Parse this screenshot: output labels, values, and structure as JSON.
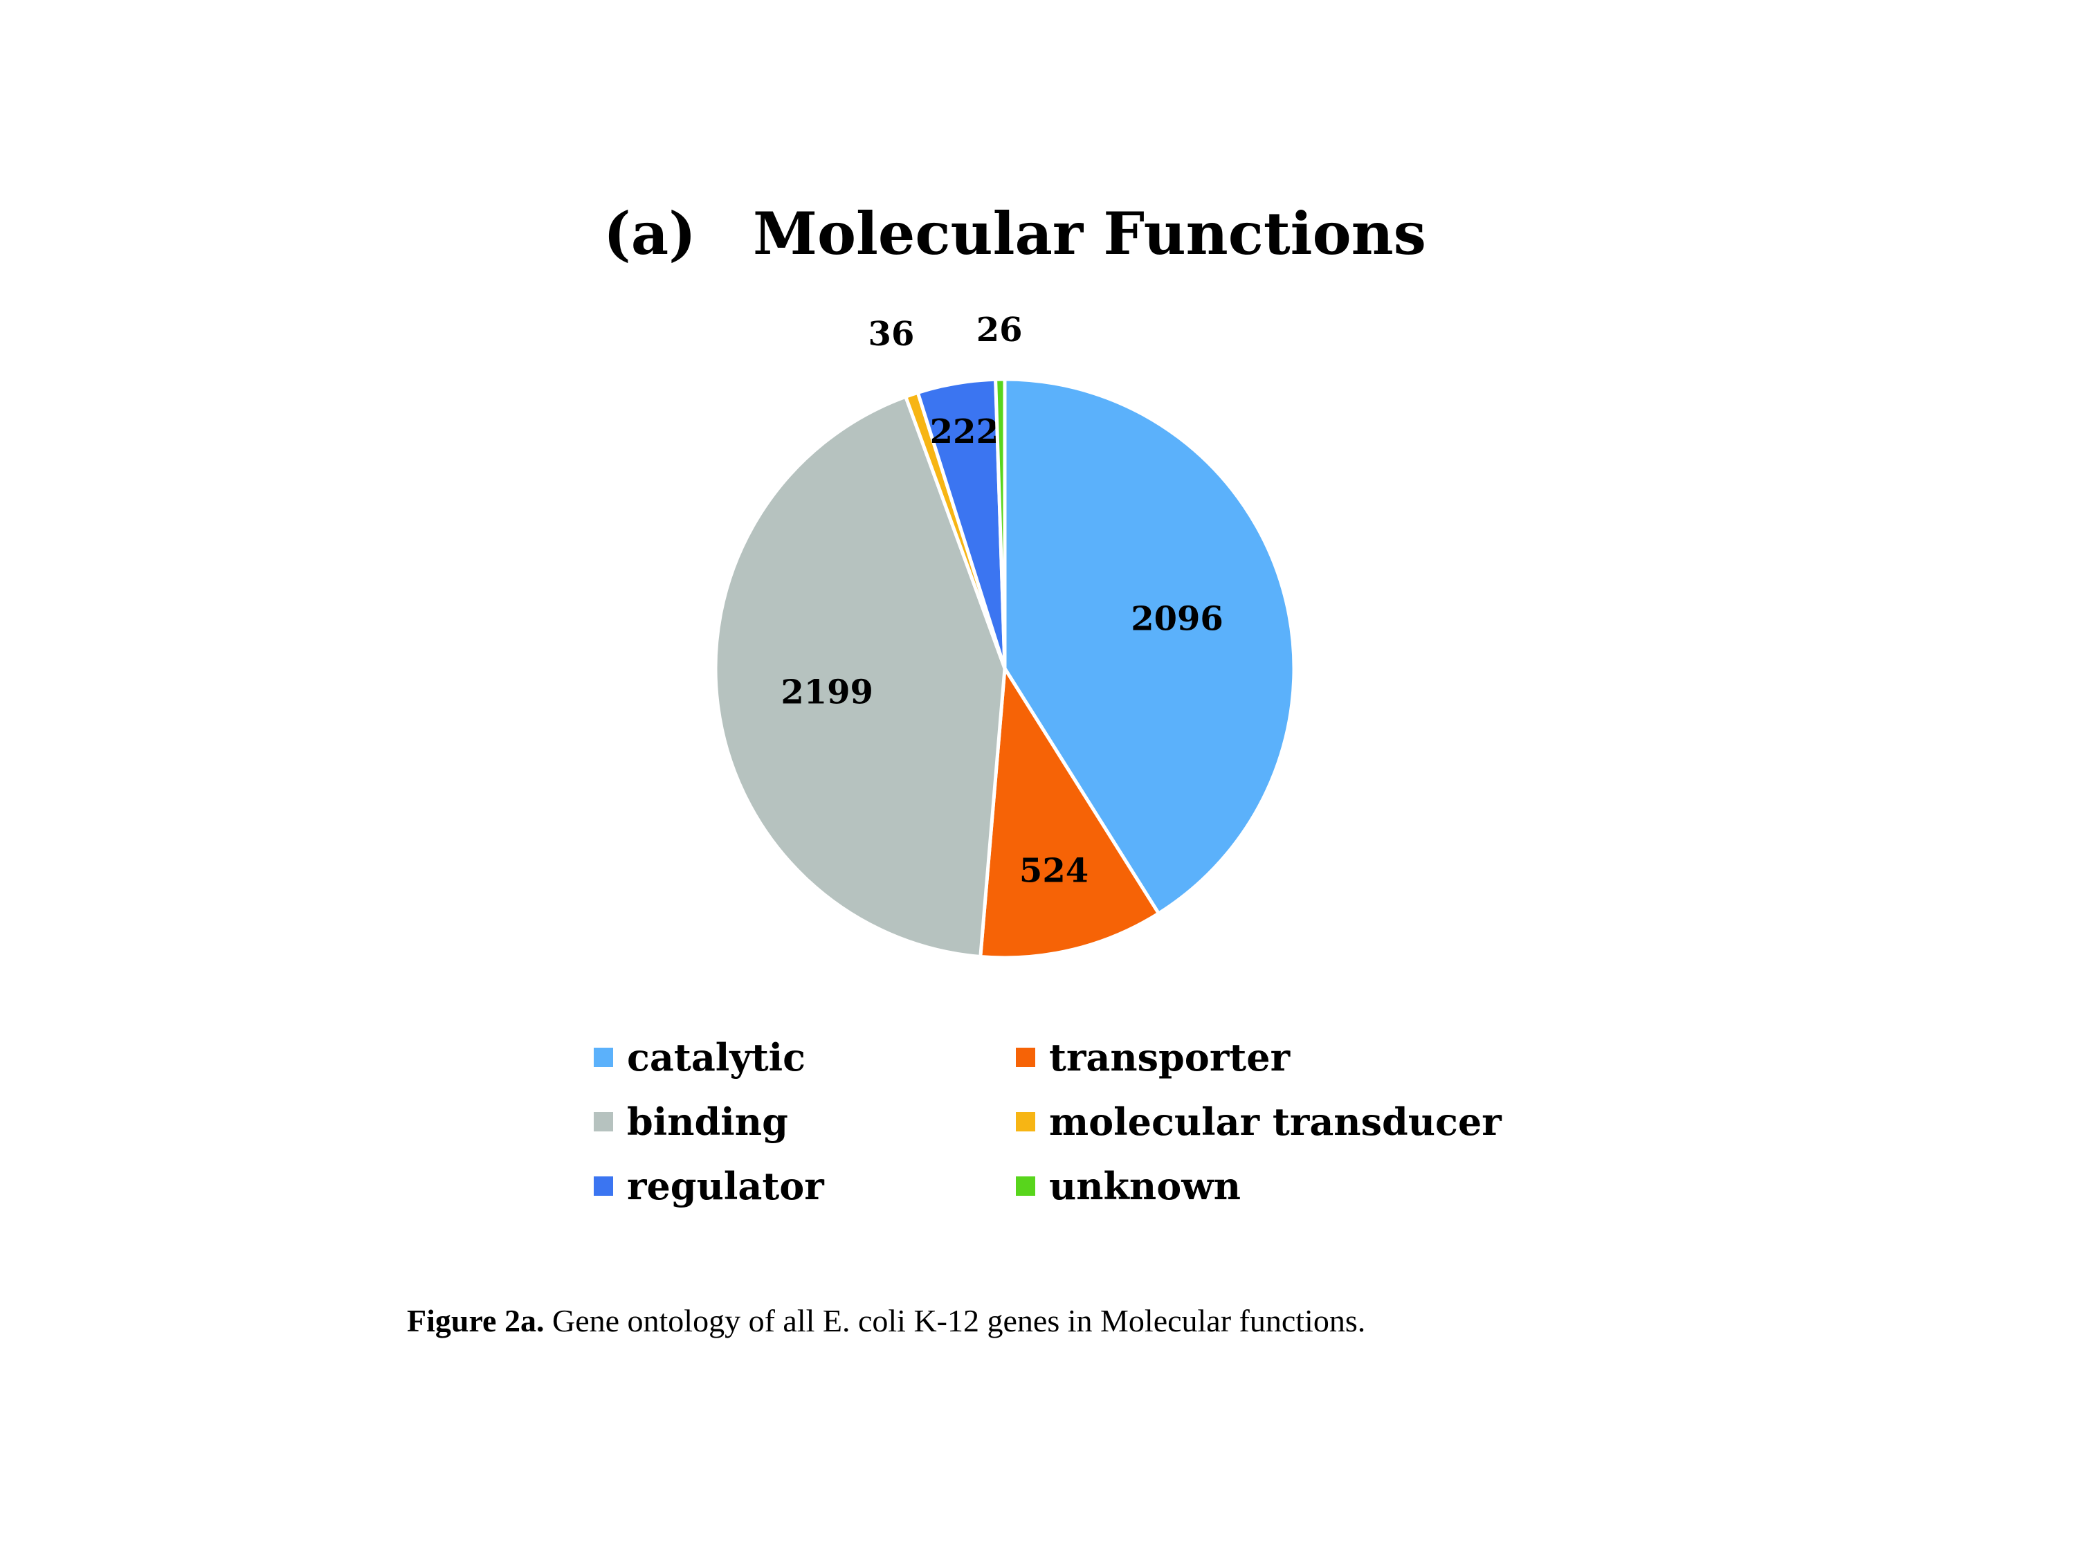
{
  "title": {
    "panel": "(a)",
    "text": "Molecular Functions"
  },
  "chart_data": {
    "type": "pie",
    "title": "Molecular Functions",
    "slices": [
      {
        "label": "catalytic",
        "value": 2096,
        "color": "#5bb1fb"
      },
      {
        "label": "transporter",
        "value": 524,
        "color": "#f66306"
      },
      {
        "label": "binding",
        "value": 2199,
        "color": "#b6c2bf"
      },
      {
        "label": "molecular transducer",
        "value": 36,
        "color": "#f7b514"
      },
      {
        "label": "regulator",
        "value": 222,
        "color": "#3b75f1"
      },
      {
        "label": "unknown",
        "value": 26,
        "color": "#58d51c"
      }
    ],
    "slice_order": [
      "catalytic",
      "transporter",
      "binding",
      "molecular transducer",
      "regulator",
      "unknown"
    ],
    "data_labels": true,
    "legend_position": "bottom"
  },
  "caption": {
    "lead": "Figure 2a.",
    "text": " Gene ontology of all E. coli K-12 genes in Molecular functions."
  }
}
